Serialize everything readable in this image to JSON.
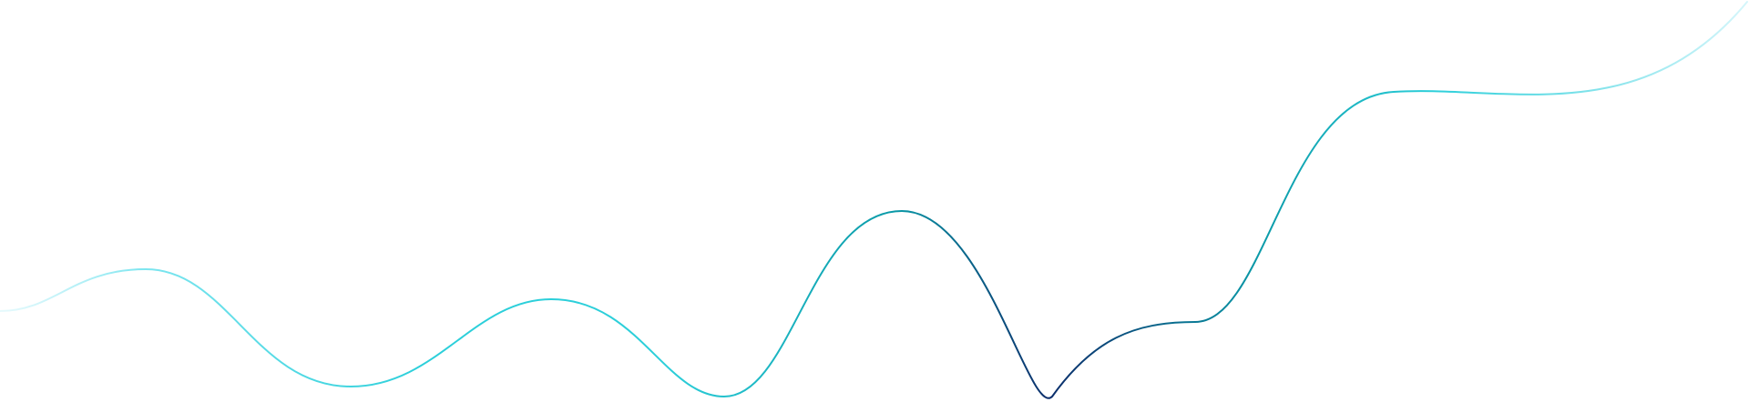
{
  "decoration": {
    "icon": "wave-line-icon",
    "colors": {
      "faded_edge": "#d6f6fb",
      "light_cyan": "#7fe6f0",
      "cyan": "#2ccfda",
      "teal": "#0a9aa8",
      "deep_blue": "#0b2d6b"
    }
  }
}
